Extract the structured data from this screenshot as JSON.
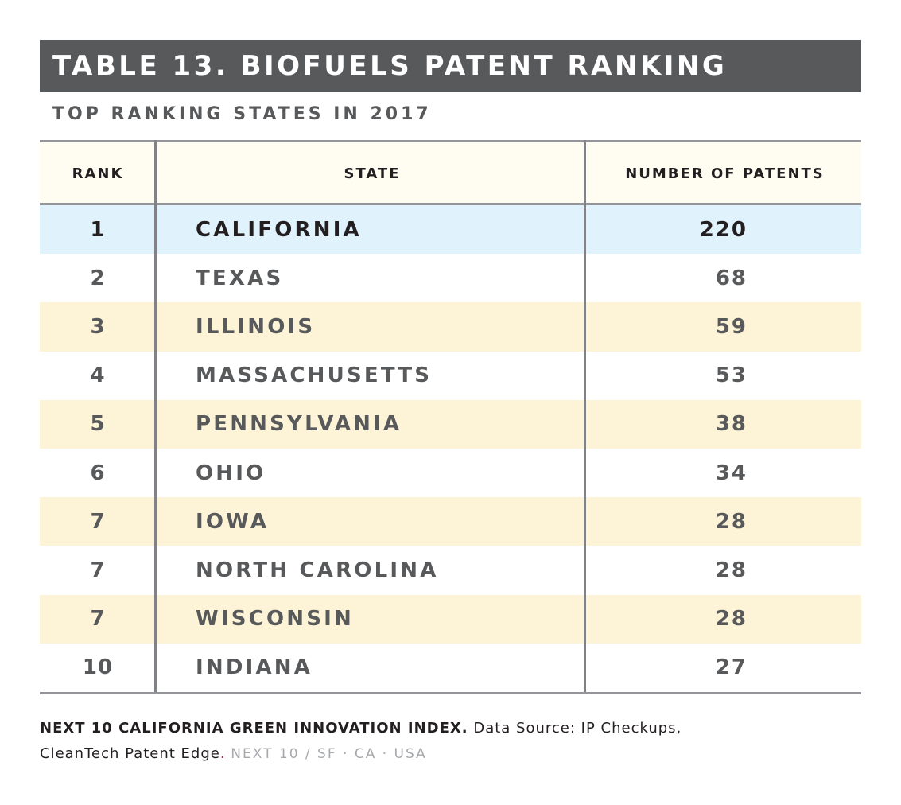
{
  "title": "TABLE 13. BIOFUELS PATENT RANKING",
  "subtitle": "TOP RANKING STATES IN 2017",
  "table": {
    "headers": {
      "rank": "RANK",
      "state": "STATE",
      "patents": "NUMBER OF PATENTS"
    },
    "rows": [
      {
        "rank": "1",
        "state": "CALIFORNIA",
        "patents": "220"
      },
      {
        "rank": "2",
        "state": "TEXAS",
        "patents": "68"
      },
      {
        "rank": "3",
        "state": "ILLINOIS",
        "patents": "59"
      },
      {
        "rank": "4",
        "state": "MASSACHUSETTS",
        "patents": "53"
      },
      {
        "rank": "5",
        "state": "PENNSYLVANIA",
        "patents": "38"
      },
      {
        "rank": "6",
        "state": "OHIO",
        "patents": "34"
      },
      {
        "rank": "7",
        "state": "IOWA",
        "patents": "28"
      },
      {
        "rank": "7",
        "state": "NORTH CAROLINA",
        "patents": "28"
      },
      {
        "rank": "7",
        "state": "WISCONSIN",
        "patents": "28"
      },
      {
        "rank": "10",
        "state": "INDIANA",
        "patents": "27"
      }
    ]
  },
  "footer": {
    "brand": "NEXT 10 CALIFORNIA GREEN INNOVATION INDEX.",
    "source_line1": "Data Source: IP Checkups,",
    "source_line2": "CleanTech Patent Edge",
    "period": ".",
    "org": "NEXT 10 / SF · CA · USA"
  },
  "colors": {
    "title_bar": "#58595b",
    "header_bg": "#fffcf2",
    "band_bg": "#fdf3d6",
    "highlight_bg": "#e0f2fb",
    "text_dark": "#231f20",
    "text_gray": "#58595b",
    "rule": "#939598"
  }
}
